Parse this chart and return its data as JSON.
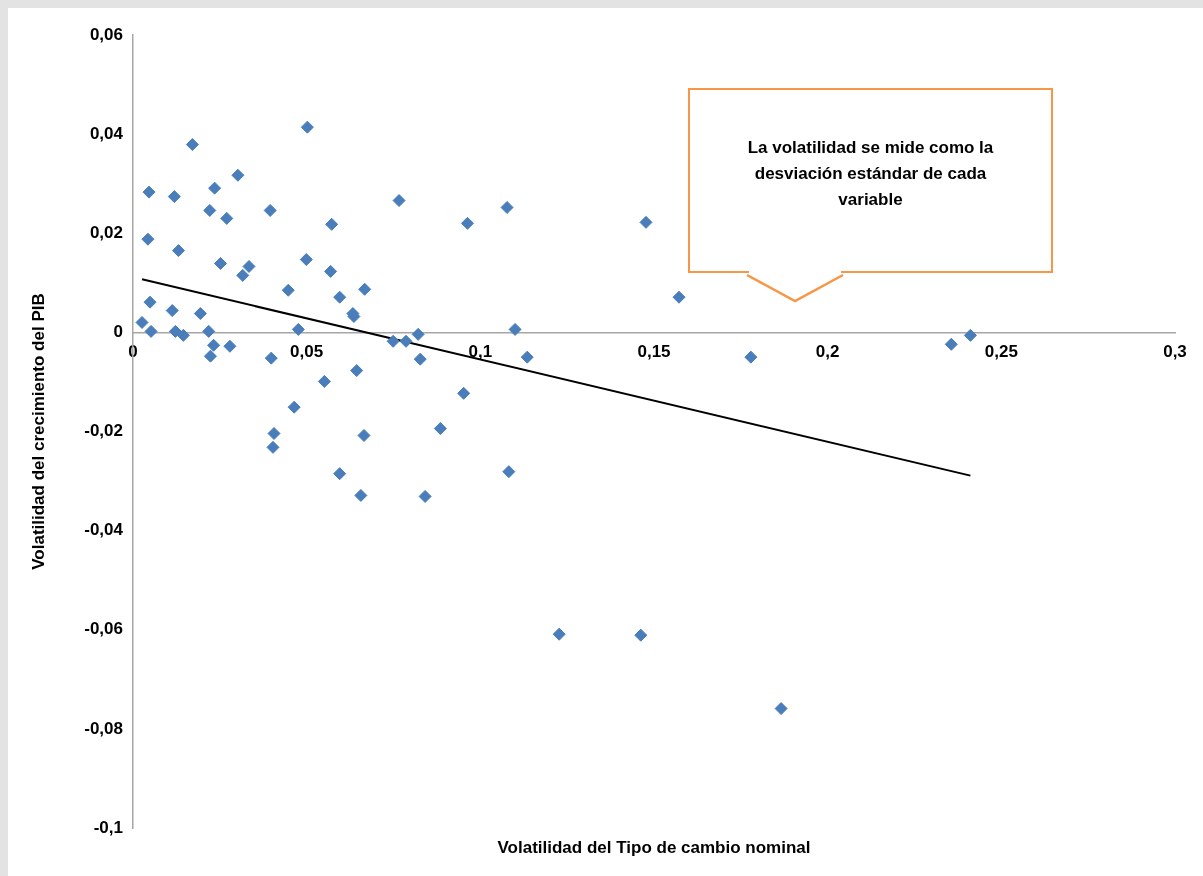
{
  "chart_data": {
    "type": "scatter",
    "xlabel": "Volatilidad del Tipo de cambio nominal",
    "ylabel": "Volatilidad del crecimiento del PIB",
    "xlim": [
      0,
      0.3
    ],
    "ylim": [
      -0.1,
      0.06
    ],
    "xticks": [
      0,
      {
        "value": 0.05,
        "label": "0,05"
      },
      {
        "value": 0.1,
        "label": "0,1"
      },
      {
        "value": 0.15,
        "label": "0,15"
      },
      {
        "value": 0.2,
        "label": "0,2"
      },
      {
        "value": 0.25,
        "label": "0,25"
      },
      {
        "value": 0.3,
        "label": "0,3"
      }
    ],
    "yticks": [
      {
        "value": -0.1,
        "label": "-0,1"
      },
      {
        "value": -0.08,
        "label": "-0,08"
      },
      {
        "value": -0.06,
        "label": "-0,06"
      },
      {
        "value": -0.04,
        "label": "-0,04"
      },
      {
        "value": -0.02,
        "label": "-0,02"
      },
      0,
      {
        "value": 0.02,
        "label": "0,02"
      },
      {
        "value": 0.04,
        "label": "0,04"
      },
      {
        "value": 0.06,
        "label": "0,06"
      }
    ],
    "grid": false,
    "legend": false,
    "marker": "diamond",
    "annotations": [
      "La volatilidad se mide como la desviación estándar de cada variable"
    ],
    "series": [
      {
        "type": "scatter",
        "color": "#4a7ebb",
        "x": [
          0.0026,
          0.0046,
          0.0043,
          0.0049,
          0.0052,
          0.0113,
          0.0119,
          0.0122,
          0.0131,
          0.0145,
          0.0171,
          0.0194,
          0.0218,
          0.0221,
          0.0223,
          0.0232,
          0.0235,
          0.0252,
          0.027,
          0.0279,
          0.0302,
          0.0316,
          0.0334,
          0.0395,
          0.0398,
          0.0403,
          0.0406,
          0.0447,
          0.0464,
          0.0476,
          0.0499,
          0.0502,
          0.0551,
          0.0572,
          0.0569,
          0.0595,
          0.0595,
          0.0633,
          0.0636,
          0.0644,
          0.0656,
          0.0667,
          0.0665,
          0.0749,
          0.0766,
          0.0786,
          0.0821,
          0.0827,
          0.0841,
          0.0885,
          0.0952,
          0.0963,
          0.1077,
          0.1082,
          0.11,
          0.1135,
          0.1227,
          0.1462,
          0.1477,
          0.1572,
          0.1779,
          0.1866,
          0.2356,
          0.2411
        ],
        "values": [
          0.002,
          0.0283,
          0.0188,
          0.0061,
          0.0002,
          0.0044,
          0.0274,
          0.0002,
          0.0165,
          -0.0006,
          0.0379,
          0.0038,
          0.0002,
          0.0246,
          -0.0048,
          -0.0026,
          0.0291,
          0.0139,
          0.023,
          -0.0028,
          0.0317,
          0.0115,
          0.0133,
          0.0246,
          -0.0052,
          -0.0232,
          -0.0204,
          0.0085,
          -0.0151,
          0.0006,
          0.0147,
          0.0414,
          -0.0099,
          0.0218,
          0.0123,
          0.0071,
          -0.0285,
          0.0038,
          0.0032,
          -0.0077,
          -0.0329,
          0.0087,
          -0.0208,
          -0.0018,
          0.0266,
          -0.0018,
          -0.0004,
          -0.0054,
          -0.0331,
          -0.0194,
          -0.0123,
          0.022,
          0.0252,
          -0.0281,
          0.0006,
          -0.005,
          -0.0609,
          -0.0611,
          0.0222,
          0.0071,
          -0.005,
          -0.0759,
          -0.0024,
          -0.0006
        ]
      },
      {
        "type": "line",
        "color": "#000000",
        "marker": "none",
        "x": [
          0.0026,
          0.2411
        ],
        "values": [
          0.0107,
          -0.0289
        ]
      }
    ]
  }
}
